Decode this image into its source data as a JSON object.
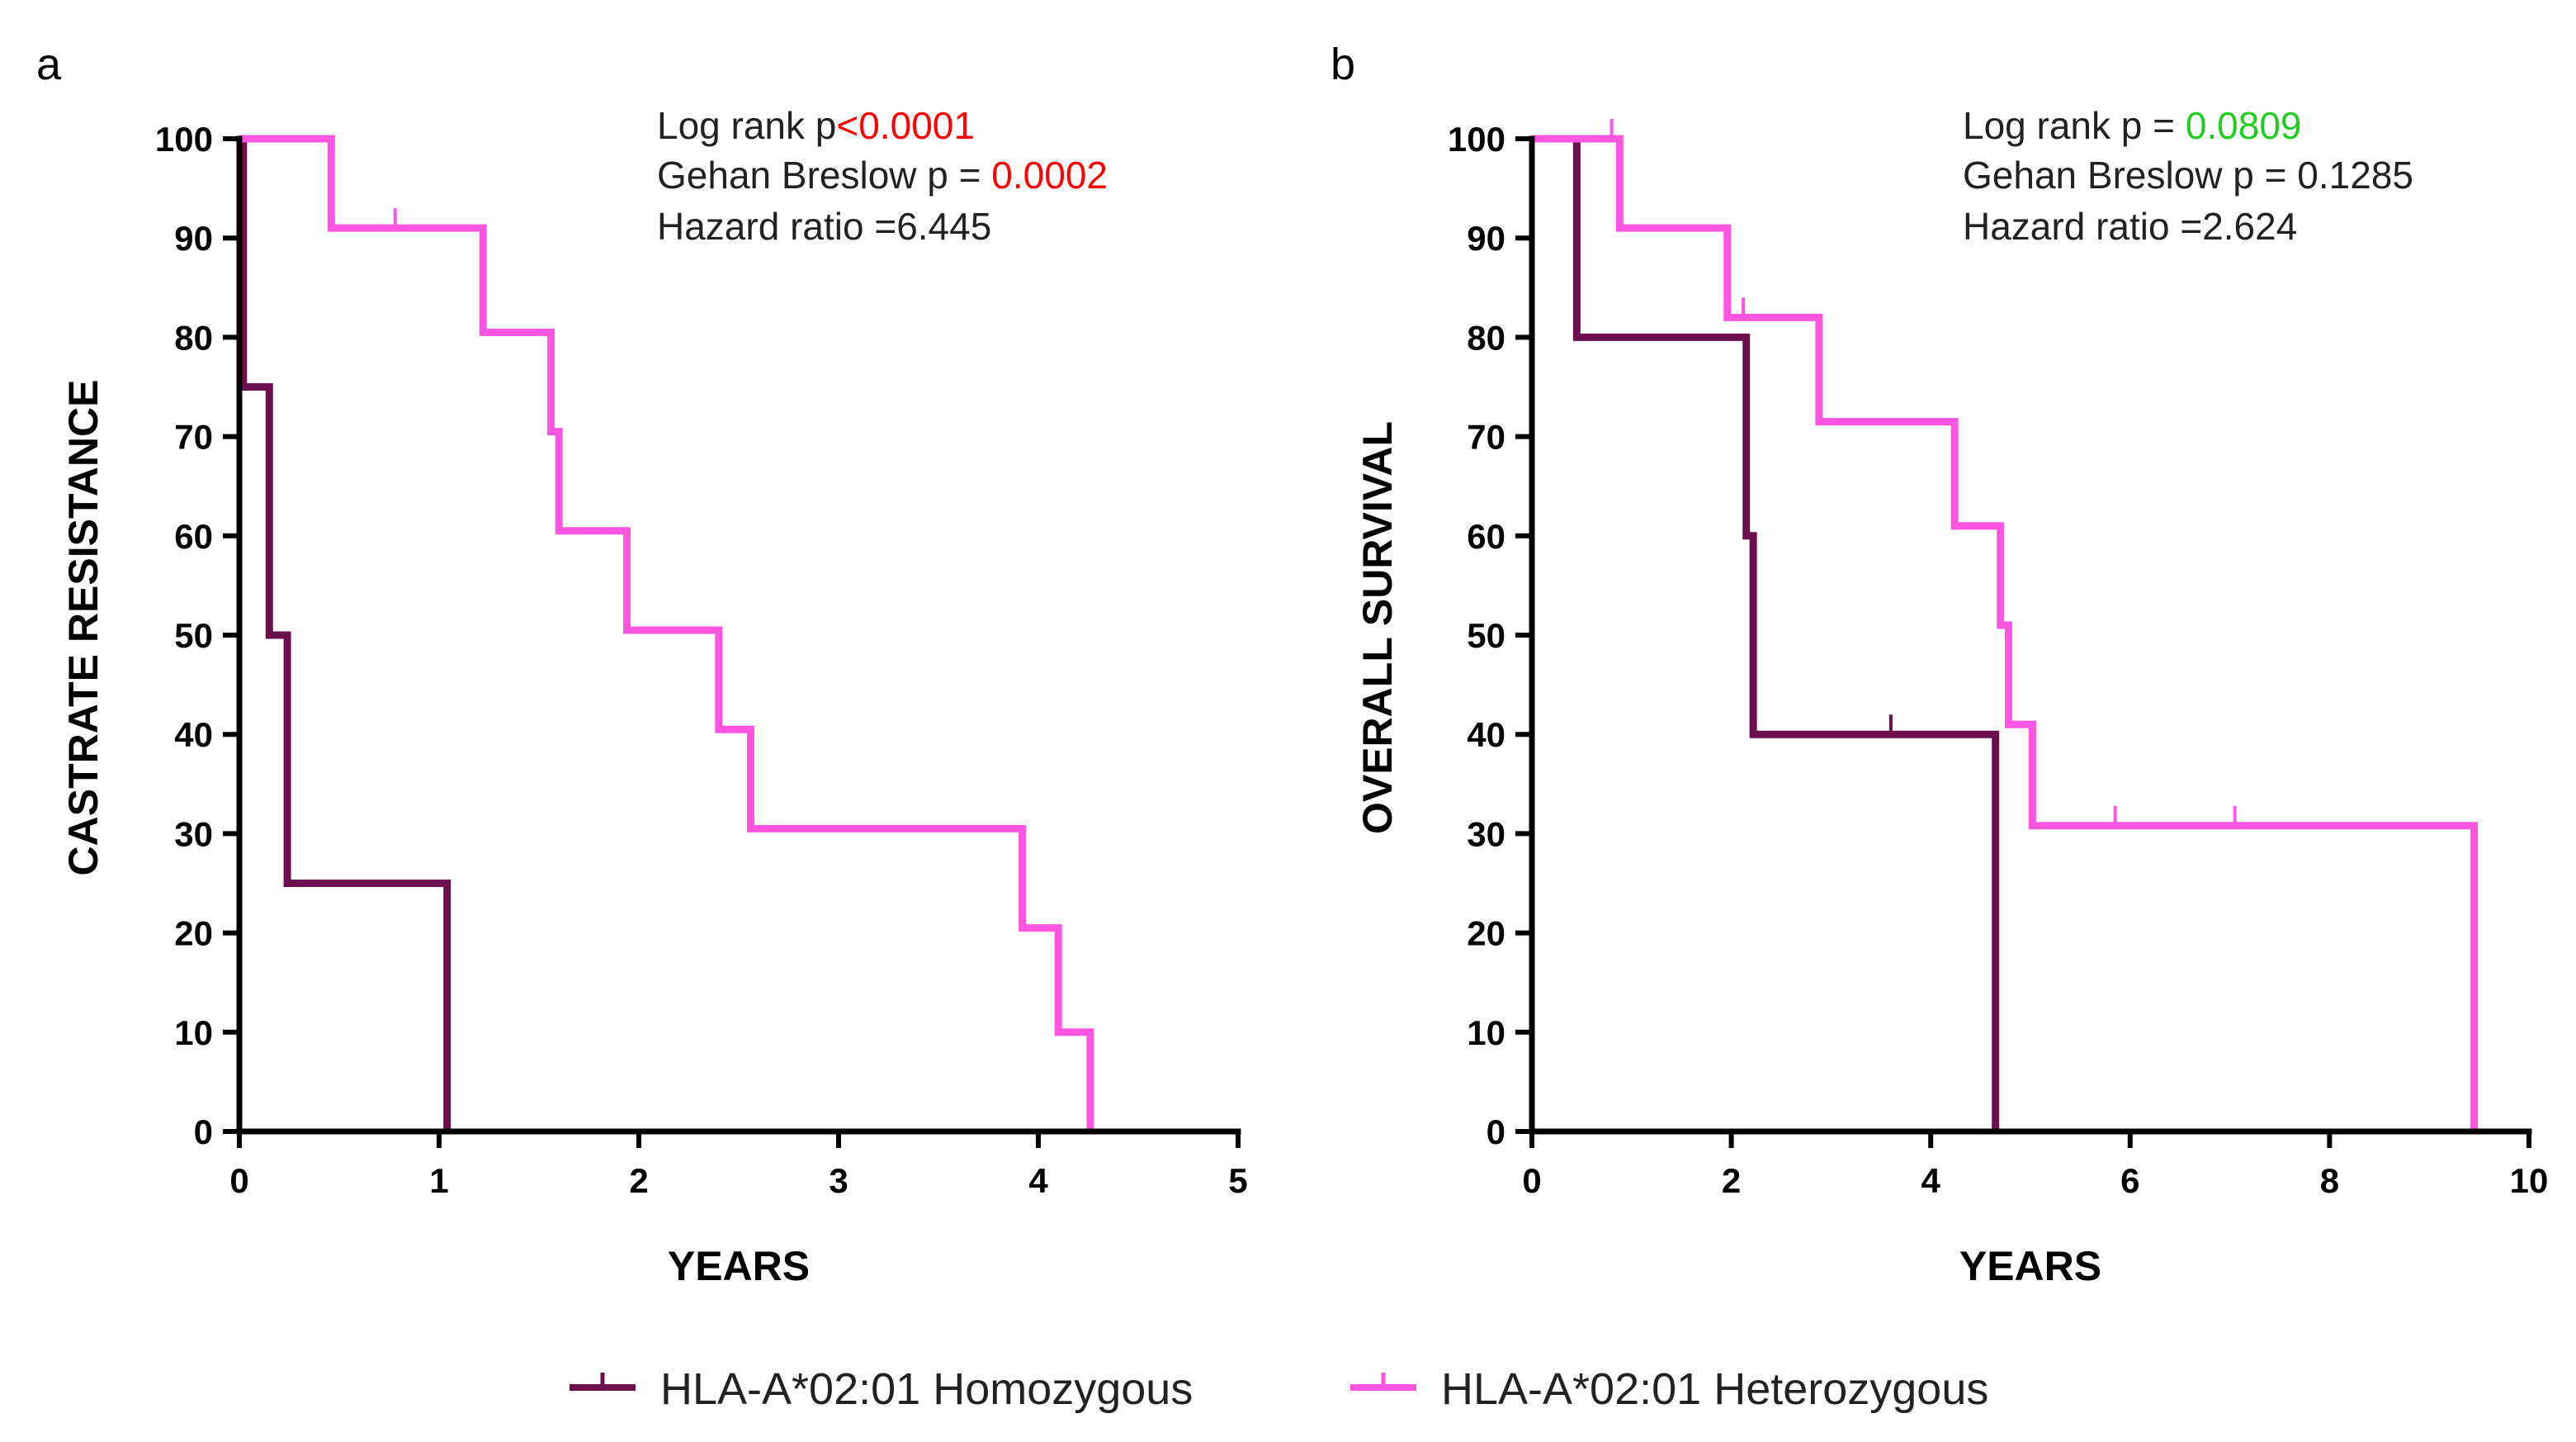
{
  "legend": {
    "homozygous": "HLA-A*02:01 Homozygous",
    "heterozygous": "HLA-A*02:01 Heterozygous"
  },
  "colors": {
    "homozygous": "#6b0f4f",
    "heterozygous": "#ff55e0",
    "red": "#ff0000",
    "green": "#22cc22"
  },
  "panels": {
    "a": {
      "label": "a",
      "stats": {
        "line1_prefix": "Log rank p",
        "line1_value": "<0.0001",
        "line2_prefix": "Gehan Breslow p = ",
        "line2_value": "0.0002",
        "line3": "Hazard ratio =6.445"
      }
    },
    "b": {
      "label": "b",
      "stats": {
        "line1_prefix": "Log rank p = ",
        "line1_value": "0.0809",
        "line2": "Gehan Breslow p = 0.1285",
        "line3": "Hazard ratio =2.624"
      }
    }
  },
  "chart_data": [
    {
      "type": "line",
      "subtype": "kaplan-meier step",
      "title": "",
      "xlabel": "YEARS",
      "ylabel": "CASTRATE RESISTANCE",
      "xlim": [
        0,
        5
      ],
      "ylim": [
        0,
        100
      ],
      "xticks": [
        0,
        1,
        2,
        3,
        4,
        5
      ],
      "yticks": [
        0,
        10,
        20,
        30,
        40,
        50,
        60,
        70,
        80,
        90,
        100
      ],
      "series": [
        {
          "name": "HLA-A*02:01 Homozygous",
          "color_key": "homozygous",
          "x": [
            0,
            0.02,
            0.15,
            0.24,
            1.04
          ],
          "y": [
            100,
            75,
            50,
            25,
            0
          ],
          "censored": []
        },
        {
          "name": "HLA-A*02:01 Heterozygous",
          "color_key": "heterozygous",
          "x": [
            0,
            0.46,
            1.22,
            1.56,
            1.6,
            1.94,
            2.4,
            2.56,
            3.92,
            4.1,
            4.26
          ],
          "y": [
            100,
            91,
            80.5,
            70.5,
            60.5,
            50.5,
            40.5,
            30.5,
            20.5,
            10,
            0
          ],
          "censored": [
            [
              0.78,
              91
            ]
          ]
        }
      ]
    },
    {
      "type": "line",
      "subtype": "kaplan-meier step",
      "title": "",
      "xlabel": "YEARS",
      "ylabel": "OVERALL SURVIVAL",
      "xlim": [
        0,
        10
      ],
      "ylim": [
        0,
        100
      ],
      "xticks": [
        0,
        2,
        4,
        6,
        8,
        10
      ],
      "yticks": [
        0,
        10,
        20,
        30,
        40,
        50,
        60,
        70,
        80,
        90,
        100
      ],
      "series": [
        {
          "name": "HLA-A*02:01 Homozygous",
          "color_key": "homozygous",
          "x": [
            0,
            0.45,
            2.15,
            2.22,
            4.65
          ],
          "y": [
            100,
            80,
            60,
            40,
            0
          ],
          "censored": [
            [
              3.6,
              40
            ]
          ]
        },
        {
          "name": "HLA-A*02:01 Heterozygous",
          "color_key": "heterozygous",
          "x": [
            0,
            0.88,
            1.96,
            2.88,
            4.24,
            4.7,
            4.78,
            5.02,
            9.45
          ],
          "y": [
            100,
            91,
            82,
            71.5,
            61,
            51,
            41,
            30.8,
            0
          ],
          "censored": [
            [
              0.8,
              100
            ],
            [
              2.12,
              82
            ],
            [
              5.85,
              30.8
            ],
            [
              7.05,
              30.8
            ]
          ]
        }
      ]
    }
  ]
}
